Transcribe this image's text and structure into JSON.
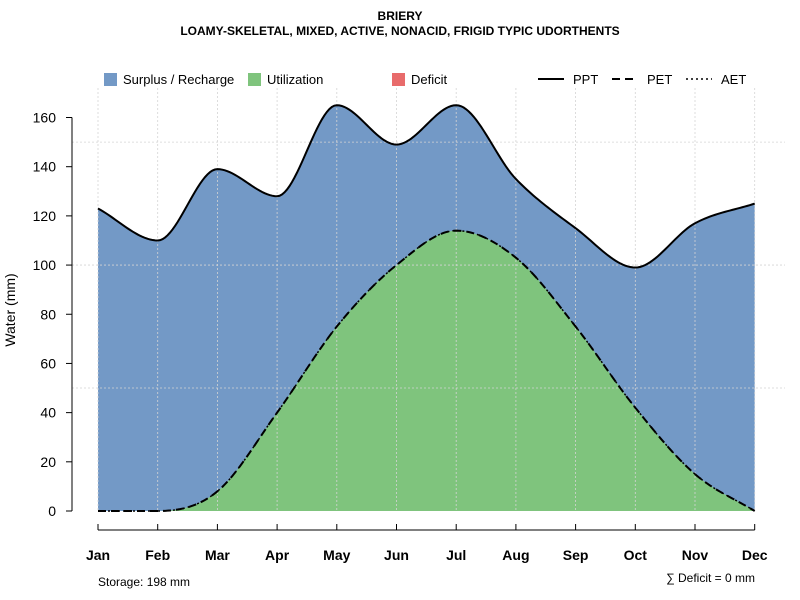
{
  "chart_data": {
    "type": "area",
    "title": "BRIERY",
    "subtitle": "LOAMY-SKELETAL, MIXED, ACTIVE, NONACID, FRIGID TYPIC UDORTHENTS",
    "ylabel": "Water (mm)",
    "xlabel": "",
    "ylim": [
      0,
      172
    ],
    "yticks": [
      0,
      20,
      40,
      60,
      80,
      100,
      120,
      140,
      160
    ],
    "categories": [
      "Jan",
      "Feb",
      "Mar",
      "Apr",
      "May",
      "Jun",
      "Jul",
      "Aug",
      "Sep",
      "Oct",
      "Nov",
      "Dec"
    ],
    "series": [
      {
        "name": "PPT",
        "style": "solid",
        "values": [
          123,
          110,
          139,
          128,
          165,
          149,
          165,
          135,
          115,
          99,
          117,
          125
        ]
      },
      {
        "name": "PET",
        "style": "dashed",
        "values": [
          0,
          0,
          8,
          40,
          75,
          100,
          114,
          103,
          75,
          42,
          15,
          0
        ]
      },
      {
        "name": "AET",
        "style": "dotted",
        "values": [
          0,
          0,
          8,
          40,
          75,
          100,
          114,
          103,
          75,
          42,
          15,
          0
        ]
      }
    ],
    "fills": [
      {
        "name": "Surplus / Recharge",
        "color": "#7399C6"
      },
      {
        "name": "Utilization",
        "color": "#7FC47D"
      },
      {
        "name": "Deficit",
        "color": "#E86B6B"
      }
    ],
    "grid": true,
    "legend": "top",
    "annotations": {
      "storage": "Storage: 198 mm",
      "deficit": "∑ Deficit = 0 mm"
    }
  }
}
